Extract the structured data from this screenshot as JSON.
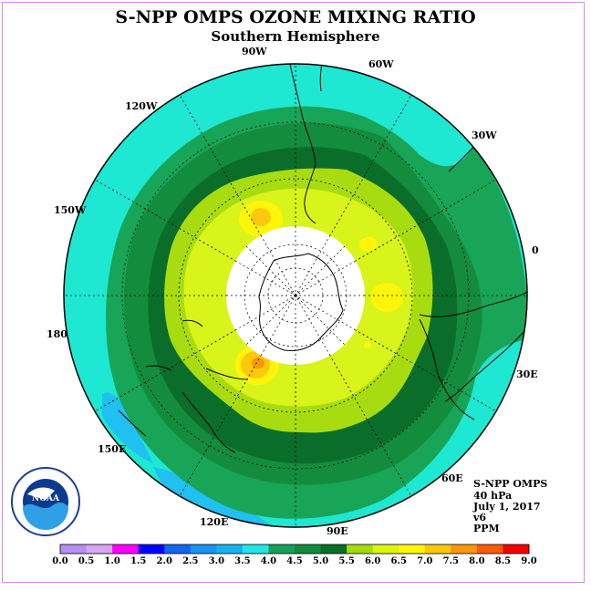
{
  "title": "S-NPP OMPS OZONE MIXING RATIO",
  "subtitle": "Southern Hemisphere",
  "longitude_labels": {
    "lon_90w": "90W",
    "lon_60w": "60W",
    "lon_30w": "30W",
    "lon_120w": "120W",
    "lon_150w": "150W",
    "lon_0": "0",
    "lon_180": "180",
    "lon_30e": "30E",
    "lon_150e": "150E",
    "lon_60e": "60E",
    "lon_120e": "120E",
    "lon_90e": "90E"
  },
  "info": {
    "instrument": "S-NPP OMPS",
    "pressure": "40 hPa",
    "date": "July 1, 2017",
    "version": "v6",
    "units": "PPM"
  },
  "logo_text": "NOAA",
  "colorbar": {
    "ticks": [
      "0.0",
      "0.5",
      "1.0",
      "1.5",
      "2.0",
      "2.5",
      "3.0",
      "3.5",
      "4.0",
      "4.5",
      "5.0",
      "5.5",
      "6.0",
      "6.5",
      "7.0",
      "7.5",
      "8.0",
      "8.5",
      "9.0"
    ],
    "colors": [
      "#b88ef0",
      "#d7a6f0",
      "#ff00ff",
      "#0000ff",
      "#1266f0",
      "#1a92f0",
      "#14b4f0",
      "#22e6e6",
      "#16a05a",
      "#128a3c",
      "#0a6e2a",
      "#a6dc0a",
      "#dcf414",
      "#fff50a",
      "#fcc80c",
      "#fa960a",
      "#fa5a0a",
      "#f50000",
      "#a0522d"
    ]
  },
  "legend_colors": {
    "band_3_5": "#1ee8d2",
    "band_3_0": "#20c0f0",
    "band_4_0": "#18a558",
    "band_4_5": "#148c3e",
    "band_5_0": "#0a6e2a",
    "band_5_5": "#a8dc10",
    "band_6_0": "#d8f41a",
    "band_6_5": "#fff50a",
    "band_7_0": "#fcc80c",
    "band_7_5": "#fa960a"
  }
}
